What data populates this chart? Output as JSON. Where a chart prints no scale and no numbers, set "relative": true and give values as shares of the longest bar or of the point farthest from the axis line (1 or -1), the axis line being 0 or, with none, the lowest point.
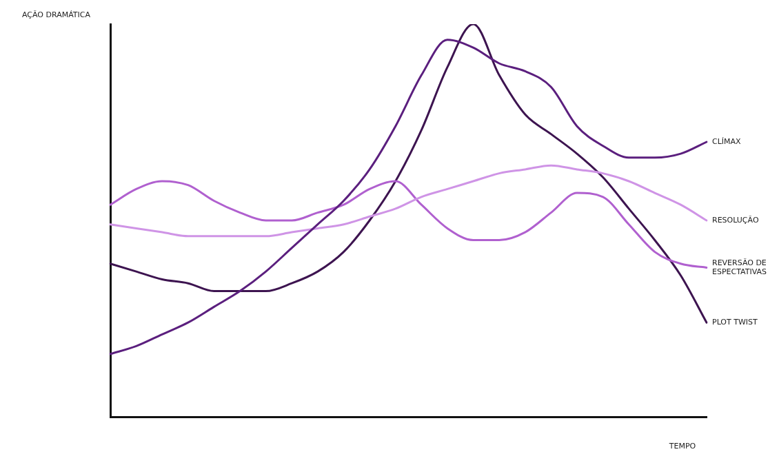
{
  "chart_data": {
    "type": "line",
    "relative": true,
    "xlabel": "TEMPO",
    "ylabel": "AÇÃO DRAMÁTICA",
    "categories": [
      null,
      null,
      null,
      null,
      null,
      null,
      null,
      null,
      null,
      null,
      null,
      null,
      null,
      null,
      null,
      null,
      null,
      null,
      null,
      null,
      null,
      null,
      null,
      null
    ],
    "series": [
      {
        "name": "CLÍMAX",
        "color": "#5b1f7e",
        "values": [
          0.16,
          0.18,
          0.21,
          0.24,
          0.28,
          0.32,
          0.37,
          0.43,
          0.49,
          0.55,
          0.63,
          0.74,
          0.87,
          0.96,
          0.94,
          0.9,
          0.88,
          0.84,
          0.74,
          0.69,
          0.66,
          0.66,
          0.67,
          0.7
        ]
      },
      {
        "name": "RESOLUÇÃO",
        "color": "#cf94e6",
        "values": [
          0.49,
          0.48,
          0.47,
          0.46,
          0.46,
          0.46,
          0.46,
          0.47,
          0.48,
          0.49,
          0.51,
          0.53,
          0.56,
          0.58,
          0.6,
          0.62,
          0.63,
          0.64,
          0.63,
          0.62,
          0.6,
          0.57,
          0.54,
          0.5
        ]
      },
      {
        "name": "REVERSÃO DE ESPECTATIVAS",
        "color": "#b060cf",
        "values": [
          0.54,
          0.58,
          0.6,
          0.59,
          0.55,
          0.52,
          0.5,
          0.5,
          0.52,
          0.54,
          0.58,
          0.6,
          0.54,
          0.48,
          0.45,
          0.45,
          0.47,
          0.52,
          0.57,
          0.56,
          0.49,
          0.42,
          0.39,
          0.38
        ]
      },
      {
        "name": "PLOT TWIST",
        "color": "#3d1450",
        "values": [
          0.39,
          0.37,
          0.35,
          0.34,
          0.32,
          0.32,
          0.32,
          0.34,
          0.37,
          0.42,
          0.5,
          0.6,
          0.73,
          0.89,
          1.0,
          0.87,
          0.77,
          0.72,
          0.67,
          0.61,
          0.53,
          0.45,
          0.36,
          0.24
        ]
      }
    ],
    "grid": false,
    "legend": false
  }
}
